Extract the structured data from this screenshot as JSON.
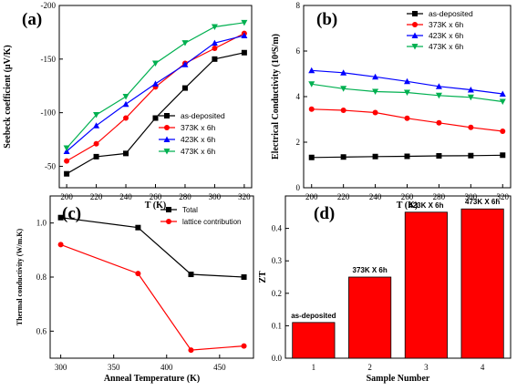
{
  "chart_data": [
    {
      "panel": "(a)",
      "type": "line",
      "xlabel": "T (K)",
      "ylabel": "Seebeck coefficient (μV/K)",
      "xlim": [
        195,
        325
      ],
      "ylim": [
        -30,
        -200
      ],
      "x_ticks": [
        200,
        220,
        240,
        260,
        280,
        300,
        320
      ],
      "y_ticks": [
        -50,
        -100,
        -150,
        -200
      ],
      "x": [
        200,
        220,
        240,
        260,
        280,
        300,
        320
      ],
      "legend_position": "bottom-right",
      "series": [
        {
          "name": "as-deposited",
          "color": "#000000",
          "marker": "square",
          "values": [
            -43,
            -59,
            -62,
            -95,
            -123,
            -150,
            -156
          ]
        },
        {
          "name": "373K x 6h",
          "color": "#ff0000",
          "marker": "circle",
          "values": [
            -55,
            -71,
            -95,
            -124,
            -146,
            -160,
            -174
          ]
        },
        {
          "name": "423K x 6h",
          "color": "#0000ff",
          "marker": "triangle-up",
          "values": [
            -64,
            -88,
            -108,
            -127,
            -145,
            -165,
            -172
          ]
        },
        {
          "name": "473K x 6h",
          "color": "#00b050",
          "marker": "triangle-down",
          "values": [
            -67,
            -98,
            -115,
            -146,
            -165,
            -180,
            -184
          ]
        }
      ]
    },
    {
      "panel": "(b)",
      "type": "line",
      "xlabel": "T (K)",
      "ylabel": "Electrical Conductivity (10⁴S/m)",
      "xlim": [
        195,
        325
      ],
      "ylim": [
        0,
        8
      ],
      "x_ticks": [
        200,
        220,
        240,
        260,
        280,
        300,
        320
      ],
      "y_ticks": [
        0,
        2,
        4,
        6,
        8
      ],
      "x": [
        200,
        220,
        240,
        260,
        280,
        300,
        320
      ],
      "legend_position": "top-right",
      "series": [
        {
          "name": "as-deposited",
          "color": "#000000",
          "marker": "square",
          "values": [
            1.33,
            1.35,
            1.37,
            1.38,
            1.4,
            1.41,
            1.43
          ]
        },
        {
          "name": "373K x 6h",
          "color": "#ff0000",
          "marker": "circle",
          "values": [
            3.45,
            3.4,
            3.3,
            3.05,
            2.85,
            2.65,
            2.48
          ]
        },
        {
          "name": "423K x 6h",
          "color": "#0000ff",
          "marker": "triangle-up",
          "values": [
            5.15,
            5.05,
            4.87,
            4.67,
            4.45,
            4.3,
            4.12
          ]
        },
        {
          "name": "473K x 6h",
          "color": "#00b050",
          "marker": "triangle-down",
          "values": [
            4.55,
            4.35,
            4.22,
            4.18,
            4.05,
            3.97,
            3.78
          ]
        }
      ]
    },
    {
      "panel": "(c)",
      "type": "line",
      "xlabel": "Anneal Temperature (K)",
      "ylabel": "Thermal conductivity (W/m.K)",
      "xlim": [
        290,
        482
      ],
      "ylim": [
        0.5,
        1.1
      ],
      "x_ticks": [
        300,
        350,
        400,
        450
      ],
      "y_ticks": [
        0.6,
        0.8,
        1.0
      ],
      "x": [
        300,
        373,
        423,
        473
      ],
      "legend_position": "top-right",
      "series": [
        {
          "name": "Total",
          "color": "#000000",
          "marker": "square",
          "values": [
            1.02,
            0.983,
            0.81,
            0.8
          ]
        },
        {
          "name": "lattice contribution",
          "color": "#ff0000",
          "marker": "circle",
          "values": [
            0.92,
            0.813,
            0.53,
            0.545
          ]
        }
      ]
    },
    {
      "panel": "(d)",
      "type": "bar",
      "xlabel": "Sample Number",
      "ylabel": "ZT",
      "xlim": [
        0.5,
        4.5
      ],
      "ylim": [
        0,
        0.5
      ],
      "y_ticks": [
        0.0,
        0.1,
        0.2,
        0.3,
        0.4
      ],
      "categories": [
        "1",
        "2",
        "3",
        "4"
      ],
      "values": [
        0.11,
        0.25,
        0.45,
        0.46
      ],
      "bar_labels": [
        "as-deposited",
        "373K X 6h",
        "423K X 6h",
        "473K X 6h"
      ],
      "color": "#ff0000"
    }
  ]
}
